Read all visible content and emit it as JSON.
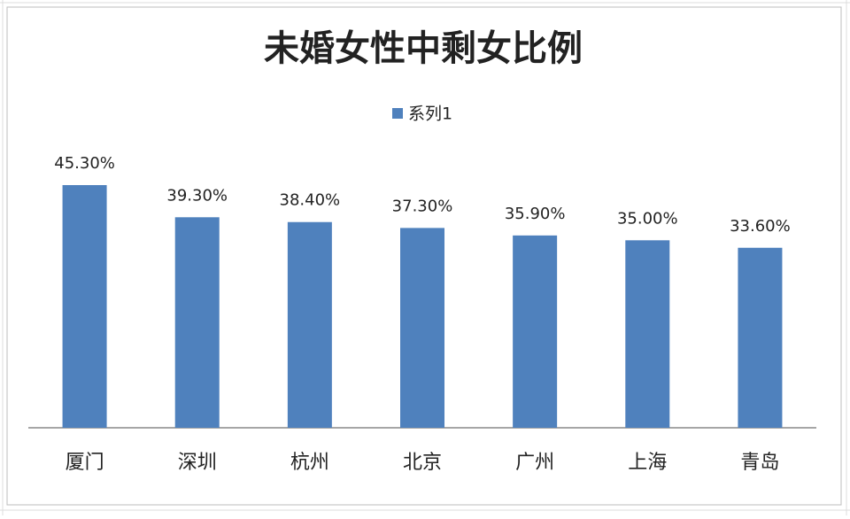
{
  "chart_data": {
    "type": "bar",
    "title": "未婚女性中剩女比例",
    "categories": [
      "厦门",
      "深圳",
      "杭州",
      "北京",
      "广州",
      "上海",
      "青岛"
    ],
    "series": [
      {
        "name": "系列1",
        "color": "#4f81bd",
        "values": [
          45.3,
          39.3,
          38.4,
          37.3,
          35.9,
          35.0,
          33.6
        ],
        "value_labels": [
          "45.30%",
          "39.30%",
          "38.40%",
          "37.30%",
          "35.90%",
          "35.00%",
          "33.60%"
        ]
      }
    ],
    "legend": "top"
  }
}
